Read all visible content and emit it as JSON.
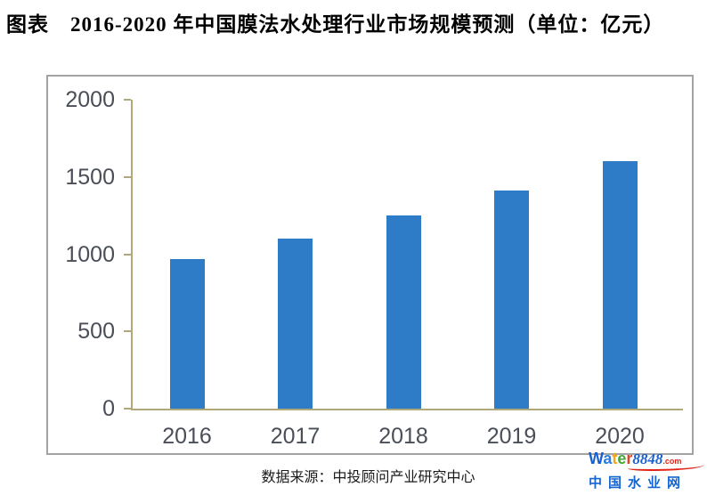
{
  "page": {
    "title": "图表　2016-2020 年中国膜法水处理行业市场规模预测（单位：亿元）",
    "source_note": "数据来源：中投顾问产业研究中心"
  },
  "chart_data": {
    "type": "bar",
    "title": "2016-2020年中国膜法水处理行业市场规模预测",
    "unit": "亿元",
    "categories": [
      "2016",
      "2017",
      "2018",
      "2019",
      "2020"
    ],
    "values": [
      970,
      1100,
      1250,
      1410,
      1600
    ],
    "xlabel": "",
    "ylabel": "",
    "ylim": [
      0,
      2000
    ],
    "yticks": [
      0,
      500,
      1000,
      1500,
      2000
    ],
    "grid": false,
    "legend": "none",
    "bar_color": "#2e7bc8",
    "axis_color": "#b1a87a",
    "tick_label_color": "#4a4e57"
  },
  "watermark": {
    "brand_letters": [
      {
        "ch": "W",
        "color": "#1b5fd0"
      },
      {
        "ch": "a",
        "color": "#2b7de0"
      },
      {
        "ch": "t",
        "color": "#f5a51d"
      },
      {
        "ch": "e",
        "color": "#46a63c"
      },
      {
        "ch": "r",
        "color": "#e2442a"
      }
    ],
    "brand_number": "8848",
    "brand_number_color": "#1b5fd0",
    "brand_tld": ".com",
    "brand_tld_color": "#e2231a",
    "site_name": "中国水业网",
    "site_name_color": "#1465d2"
  }
}
